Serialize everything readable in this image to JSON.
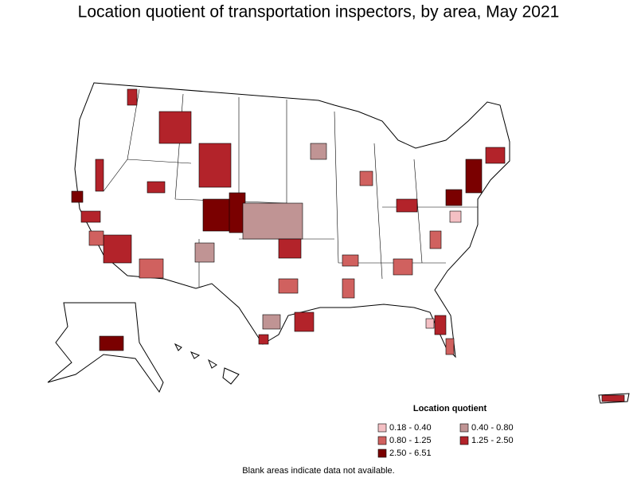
{
  "title": "Location quotient of transportation inspectors, by area, May 2021",
  "legend": {
    "title": "Location quotient",
    "items": [
      {
        "label": "0.18 - 0.40",
        "color": "#f4c0c4"
      },
      {
        "label": "0.40 - 0.80",
        "color": "#c09494"
      },
      {
        "label": "0.80 - 1.25",
        "color": "#d0615f"
      },
      {
        "label": "1.25 - 2.50",
        "color": "#b3232a"
      },
      {
        "label": "2.50 - 6.51",
        "color": "#7a0000"
      }
    ]
  },
  "note": "Blank areas indicate data not available."
}
